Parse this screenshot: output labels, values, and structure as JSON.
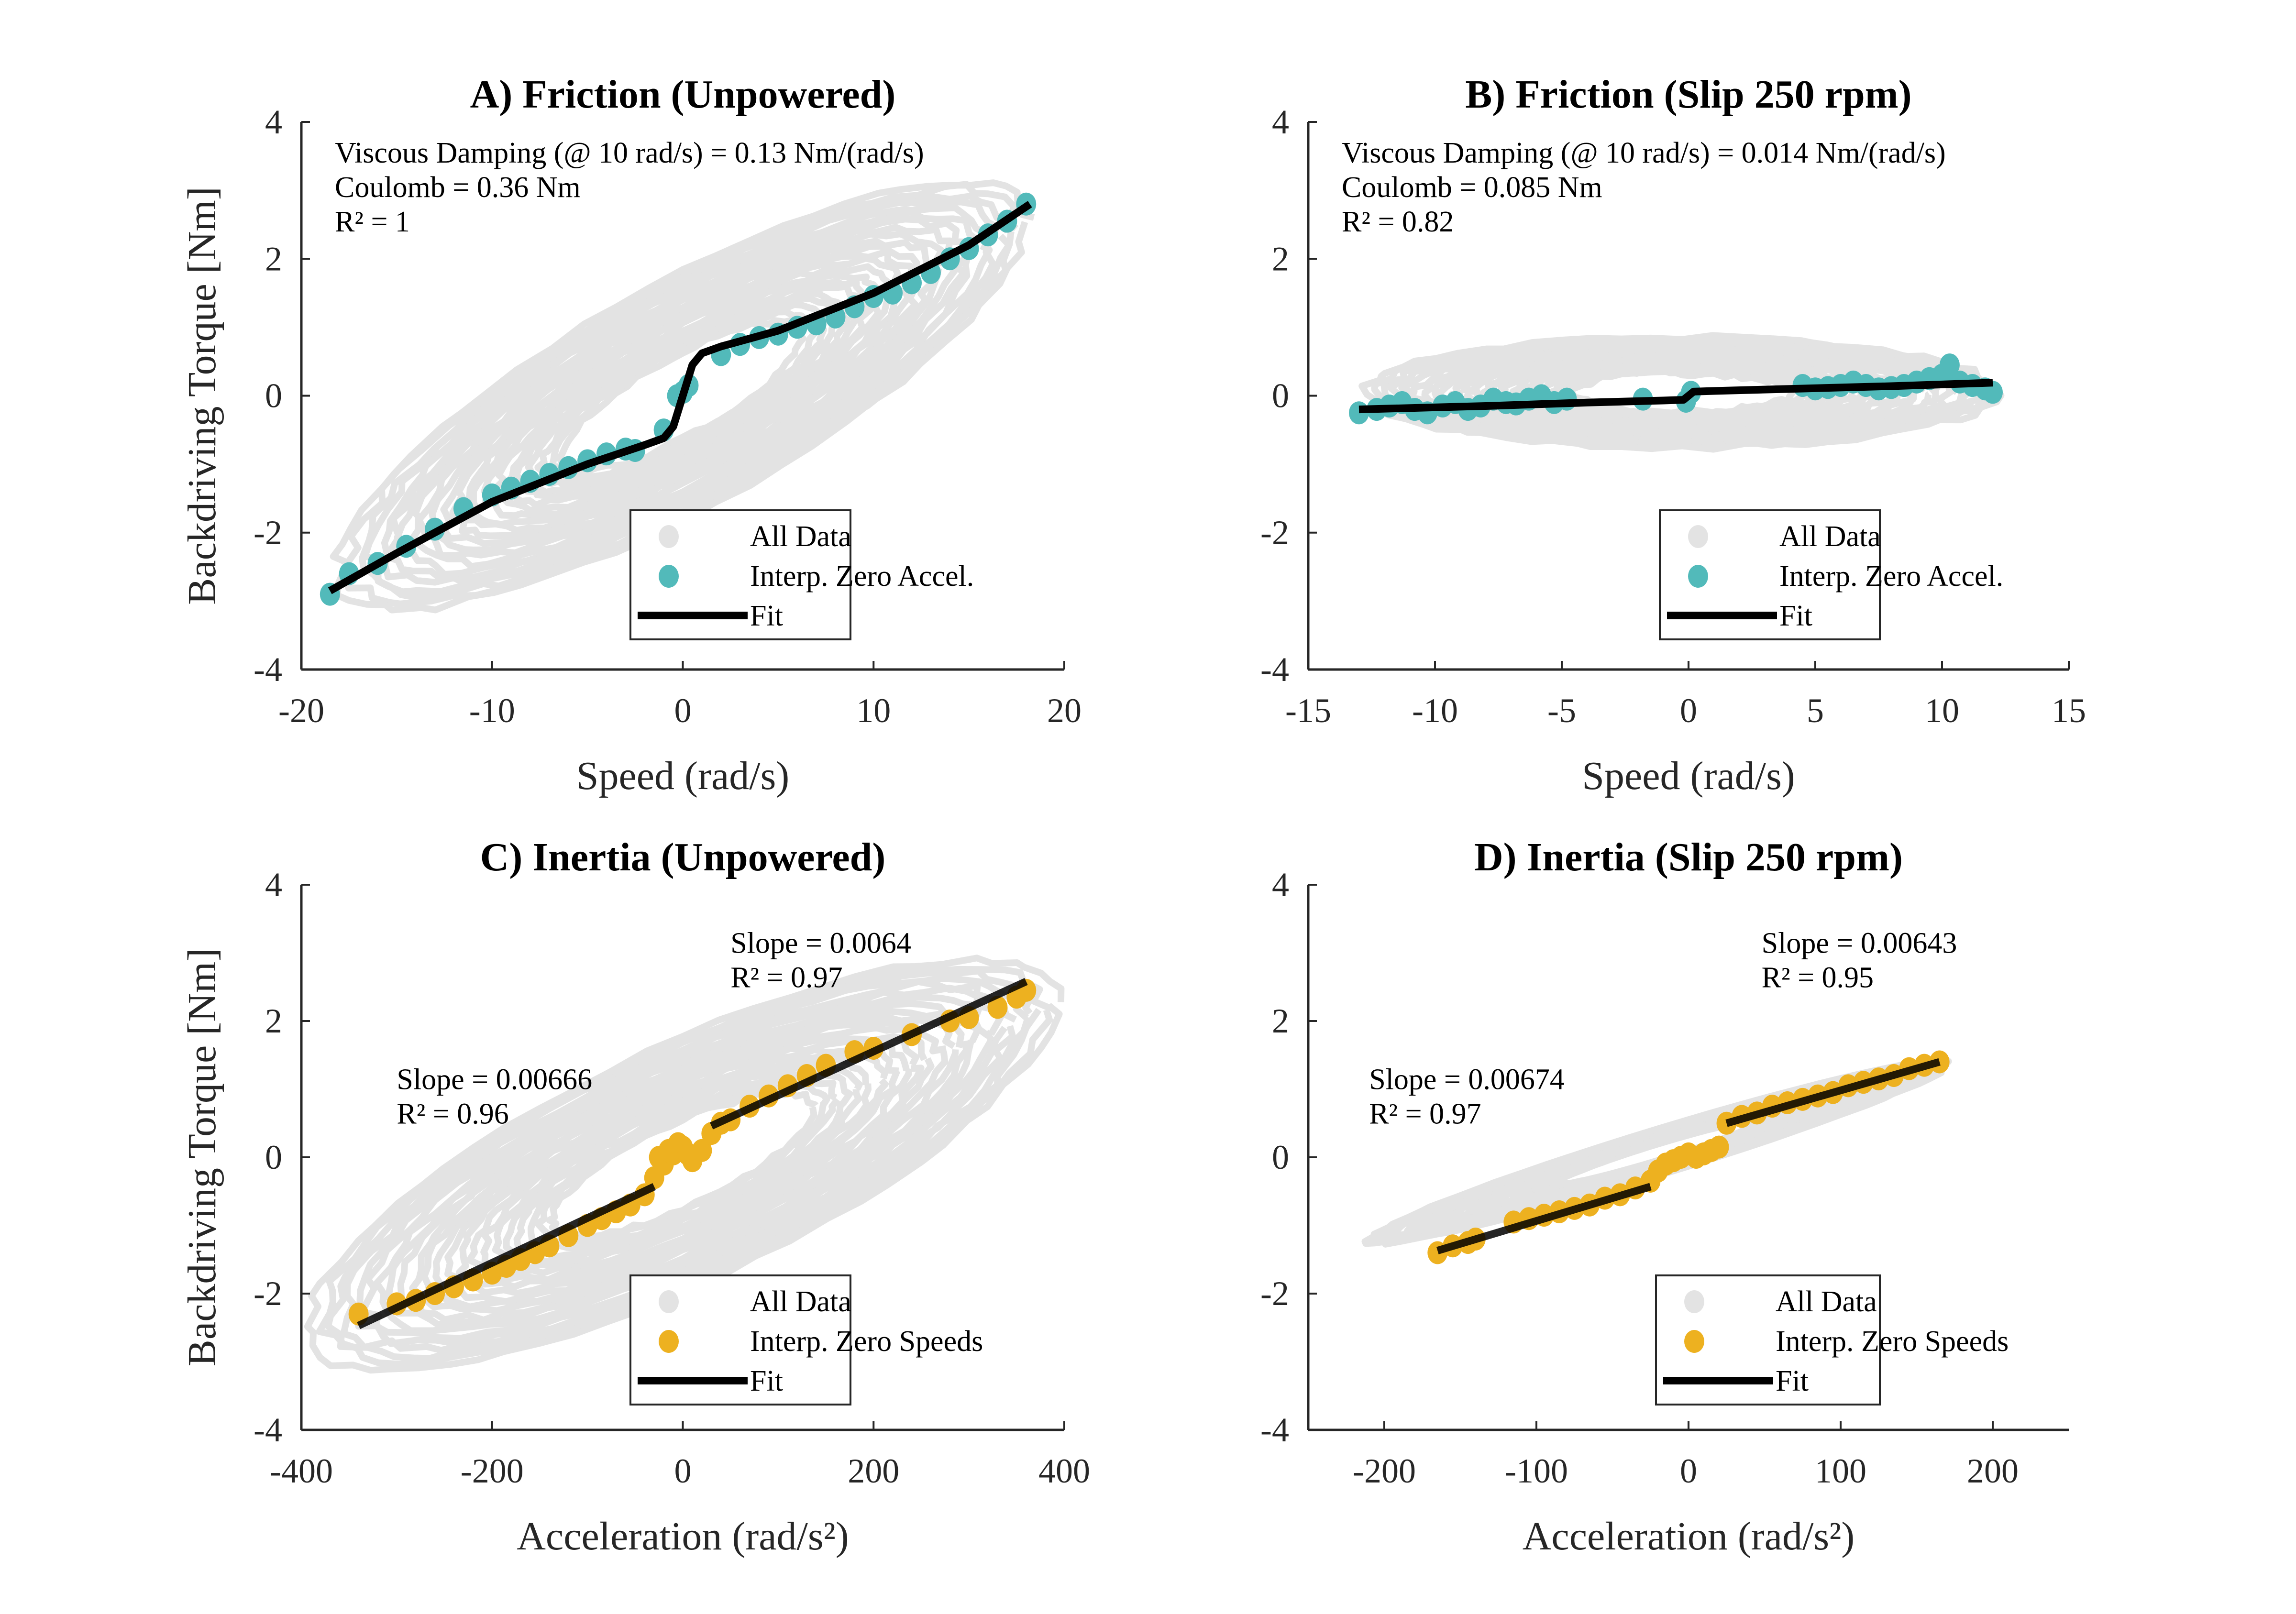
{
  "colors": {
    "all_data": "#e3e3e3",
    "zero_accel": "#52baba",
    "zero_speed": "#edb120",
    "fit": "#000000",
    "axis": "#262626"
  },
  "chart_data": [
    {
      "id": "A",
      "type": "scatter",
      "title": "A) Friction (Unpowered)",
      "xlabel": "Speed (rad/s)",
      "ylabel": "Backdriving Torque [Nm]",
      "xlim": [
        -20,
        20
      ],
      "ylim": [
        -4,
        4
      ],
      "xticks": [
        -20,
        -10,
        0,
        10,
        20
      ],
      "yticks": [
        -4,
        -2,
        0,
        2,
        4
      ],
      "grid": false,
      "legend_placement": "bottom-right",
      "legend": [
        "All Data",
        "Interp. Zero Accel.",
        "Fit"
      ],
      "annotations": [
        "Viscous Damping (@ 10 rad/s) = 0.13 Nm/(rad/s)",
        "Coulomb = 0.36 Nm",
        "R² = 1"
      ],
      "all_data_envelope": {
        "x_range": [
          -18.5,
          18.5
        ],
        "y_range": [
          -3.3,
          3.3
        ]
      },
      "points": {
        "name": "Interp. Zero Accel.",
        "x": [
          -18.5,
          -17.5,
          -16,
          -14.5,
          -13,
          -11.5,
          -10,
          -9,
          -8,
          -7,
          -6,
          -5,
          -4,
          -3,
          -2.5,
          -1,
          -0.3,
          0,
          0.3,
          2,
          3,
          4,
          5,
          6,
          7,
          8,
          9,
          10,
          11,
          12,
          13,
          14,
          15,
          16,
          17,
          18
        ],
        "y": [
          -2.9,
          -2.6,
          -2.45,
          -2.2,
          -1.95,
          -1.65,
          -1.45,
          -1.35,
          -1.25,
          -1.15,
          -1.05,
          -0.95,
          -0.85,
          -0.78,
          -0.8,
          -0.5,
          0,
          0.05,
          0.15,
          0.6,
          0.75,
          0.85,
          0.9,
          1.0,
          1.05,
          1.15,
          1.3,
          1.45,
          1.5,
          1.65,
          1.8,
          2.0,
          2.15,
          2.35,
          2.55,
          2.8
        ]
      },
      "fit": {
        "name": "Fit",
        "x": [
          -18.5,
          -15,
          -10,
          -5,
          -2,
          -1,
          -0.5,
          0,
          0.5,
          1,
          2,
          5,
          10,
          15,
          18.2
        ],
        "y": [
          -2.85,
          -2.3,
          -1.55,
          -1.0,
          -0.72,
          -0.62,
          -0.45,
          0,
          0.45,
          0.62,
          0.72,
          0.95,
          1.5,
          2.2,
          2.8
        ]
      }
    },
    {
      "id": "B",
      "type": "scatter",
      "title": "B) Friction (Slip 250 rpm)",
      "xlabel": "Speed (rad/s)",
      "ylabel": "",
      "xlim": [
        -15,
        15
      ],
      "ylim": [
        -4,
        4
      ],
      "xticks": [
        -15,
        -10,
        -5,
        0,
        5,
        10,
        15
      ],
      "yticks": [
        -4,
        -2,
        0,
        2,
        4
      ],
      "grid": false,
      "legend_placement": "bottom-right",
      "legend": [
        "All Data",
        "Interp. Zero Accel.",
        "Fit"
      ],
      "annotations": [
        "Viscous Damping (@ 10 rad/s) = 0.014 Nm/(rad/s)",
        "Coulomb = 0.085 Nm",
        "R² = 0.82"
      ],
      "all_data_envelope": {
        "x_range": [
          -13,
          12.5
        ],
        "y_range": [
          -1.4,
          1.5
        ]
      },
      "points": {
        "name": "Interp. Zero Accel.",
        "x": [
          -13,
          -12.3,
          -11.8,
          -11.3,
          -10.8,
          -10.3,
          -9.7,
          -9.2,
          -8.7,
          -8.2,
          -7.7,
          -7.2,
          -6.8,
          -6.3,
          -5.8,
          -5.3,
          -4.8,
          -1.8,
          -0.1,
          0.1,
          4.5,
          5,
          5.5,
          6,
          6.5,
          7,
          7.5,
          8,
          8.5,
          9,
          9.5,
          10,
          10.3,
          10.7,
          11.2,
          11.7,
          12
        ],
        "y": [
          -0.25,
          -0.2,
          -0.15,
          -0.1,
          -0.2,
          -0.25,
          -0.15,
          -0.1,
          -0.2,
          -0.15,
          -0.05,
          -0.1,
          -0.12,
          -0.05,
          0,
          -0.1,
          -0.05,
          -0.05,
          -0.08,
          0.05,
          0.15,
          0.1,
          0.12,
          0.15,
          0.2,
          0.15,
          0.1,
          0.12,
          0.15,
          0.2,
          0.25,
          0.3,
          0.45,
          0.2,
          0.15,
          0.1,
          0.05
        ]
      },
      "fit": {
        "name": "Fit",
        "x": [
          -13,
          -8,
          -4,
          -1,
          -0.2,
          0,
          0.2,
          1,
          4,
          8,
          12
        ],
        "y": [
          -0.2,
          -0.15,
          -0.1,
          -0.07,
          -0.06,
          0,
          0.06,
          0.07,
          0.1,
          0.14,
          0.19
        ]
      }
    },
    {
      "id": "C",
      "type": "scatter",
      "title": "C) Inertia (Unpowered)",
      "xlabel": "Acceleration (rad/s²)",
      "ylabel": "Backdriving Torque [Nm]",
      "xlim": [
        -400,
        400
      ],
      "ylim": [
        -4,
        4
      ],
      "xticks": [
        -400,
        -200,
        0,
        200,
        400
      ],
      "yticks": [
        -4,
        -2,
        0,
        2,
        4
      ],
      "grid": false,
      "legend_placement": "bottom-right",
      "legend": [
        "All Data",
        "Interp. Zero Speeds",
        "Fit"
      ],
      "annotations": [
        {
          "lines": [
            "Slope = 0.00666",
            "R² = 0.96"
          ],
          "anchor": [
            -300,
            1.0
          ]
        },
        {
          "lines": [
            "Slope = 0.0064",
            "R² = 0.97"
          ],
          "anchor": [
            50,
            3.0
          ]
        }
      ],
      "all_data_envelope": {
        "x_range": [
          -400,
          400
        ],
        "y_range": [
          -3.5,
          3.3
        ]
      },
      "points": {
        "name": "Interp. Zero Speeds",
        "x": [
          -340,
          -300,
          -280,
          -260,
          -240,
          -220,
          -200,
          -185,
          -170,
          -155,
          -140,
          -120,
          -100,
          -85,
          -70,
          -55,
          -40,
          -30,
          -25,
          -20,
          -15,
          -10,
          -5,
          0,
          5,
          10,
          20,
          30,
          40,
          50,
          70,
          90,
          110,
          130,
          150,
          180,
          200,
          240,
          280,
          300,
          330,
          350,
          360
        ],
        "y": [
          -2.3,
          -2.15,
          -2.1,
          -2.0,
          -1.9,
          -1.8,
          -1.7,
          -1.6,
          -1.5,
          -1.4,
          -1.3,
          -1.15,
          -1.0,
          -0.9,
          -0.8,
          -0.7,
          -0.55,
          -0.3,
          0,
          -0.1,
          0.1,
          0.05,
          0.2,
          0.15,
          0.05,
          -0.05,
          0.1,
          0.35,
          0.5,
          0.55,
          0.75,
          0.9,
          1.05,
          1.2,
          1.35,
          1.55,
          1.6,
          1.8,
          2.0,
          2.05,
          2.2,
          2.35,
          2.45
        ]
      },
      "fits": [
        {
          "name": "Fit",
          "slope": 0.00666,
          "x": [
            -340,
            -30
          ],
          "y": [
            -2.47,
            -0.43
          ]
        },
        {
          "name": "Fit",
          "slope": 0.0064,
          "x": [
            30,
            360
          ],
          "y": [
            0.46,
            2.58
          ]
        }
      ]
    },
    {
      "id": "D",
      "type": "scatter",
      "title": "D) Inertia (Slip 250 rpm)",
      "xlabel": "Acceleration (rad/s²)",
      "ylabel": "",
      "xlim": [
        -250,
        250
      ],
      "ylim": [
        -4,
        4
      ],
      "xticks": [
        -200,
        -100,
        0,
        100,
        200
      ],
      "yticks": [
        -4,
        -2,
        0,
        2,
        4
      ],
      "grid": false,
      "legend_placement": "bottom-right",
      "legend": [
        "All Data",
        "Interp. Zero Speeds",
        "Fit"
      ],
      "annotations": [
        {
          "lines": [
            "Slope = 0.00674",
            "R² = 0.97"
          ],
          "anchor": [
            -210,
            1.0
          ]
        },
        {
          "lines": [
            "Slope = 0.00643",
            "R² = 0.95"
          ],
          "anchor": [
            48,
            3.0
          ]
        }
      ],
      "all_data_envelope": {
        "x_range": [
          -215,
          175
        ],
        "y_range": [
          -1.3,
          1.45
        ]
      },
      "points": {
        "name": "Interp. Zero Speeds",
        "x": [
          -165,
          -155,
          -145,
          -140,
          -115,
          -105,
          -95,
          -85,
          -75,
          -65,
          -55,
          -45,
          -35,
          -25,
          -20,
          -15,
          -10,
          -5,
          0,
          5,
          10,
          15,
          20,
          25,
          35,
          45,
          55,
          65,
          75,
          85,
          95,
          105,
          115,
          125,
          135,
          145,
          155,
          165
        ],
        "y": [
          -1.4,
          -1.3,
          -1.25,
          -1.2,
          -0.95,
          -0.9,
          -0.85,
          -0.8,
          -0.75,
          -0.7,
          -0.6,
          -0.55,
          -0.45,
          -0.35,
          -0.2,
          -0.1,
          -0.05,
          0,
          0.05,
          0,
          0.05,
          0.1,
          0.15,
          0.5,
          0.6,
          0.65,
          0.75,
          0.8,
          0.85,
          0.9,
          0.95,
          1.05,
          1.1,
          1.15,
          1.2,
          1.3,
          1.35,
          1.4
        ]
      },
      "fits": [
        {
          "name": "Fit",
          "slope": 0.00674,
          "x": [
            -165,
            -25
          ],
          "y": [
            -1.37,
            -0.43
          ]
        },
        {
          "name": "Fit",
          "slope": 0.00643,
          "x": [
            25,
            165
          ],
          "y": [
            0.5,
            1.4
          ]
        }
      ]
    }
  ]
}
